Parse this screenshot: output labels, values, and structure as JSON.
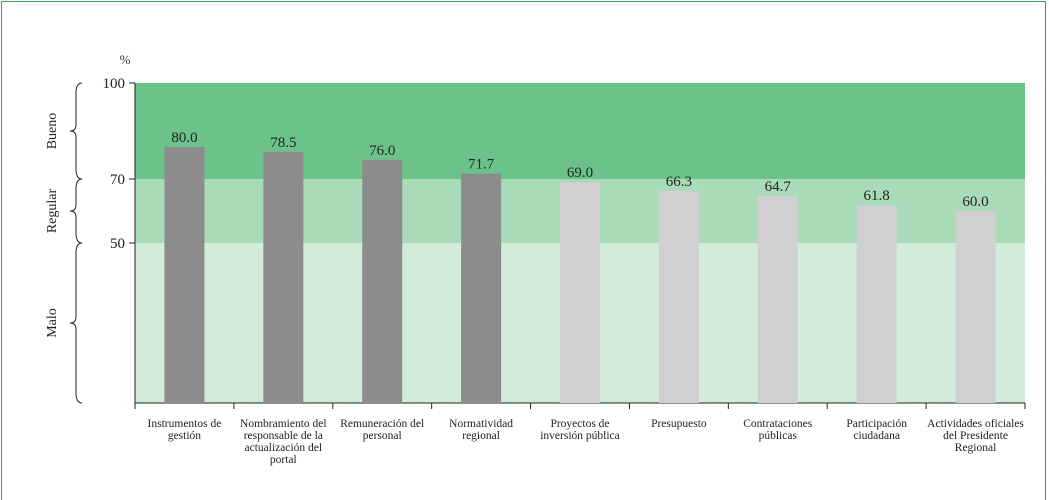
{
  "chart_data": {
    "type": "bar",
    "y_label": "%",
    "categories": [
      "Instrumentos de gestión",
      "Nombramiento del responsable de la actualización del portal",
      "Remuneración del personal",
      "Normatividad regional",
      "Proyectos de inversión pública",
      "Presupuesto",
      "Contrataciones públicas",
      "Participación ciudadana",
      "Actividades oficiales del Presidente Regional"
    ],
    "values": [
      80,
      78.5,
      76,
      71.7,
      69,
      66.3,
      64.7,
      61.8,
      60
    ],
    "value_labels": [
      "80.0",
      "78.5",
      "76.0",
      "71.7",
      "69.0",
      "66.3",
      "64.7",
      "61.8",
      "60.0"
    ],
    "colors": [
      "#8c8c8c",
      "#8c8c8c",
      "#8c8c8c",
      "#8c8c8c",
      "#d0d0d2",
      "#d0d0d2",
      "#d0d0d2",
      "#d0d0d2",
      "#d0d0d2"
    ],
    "bands": [
      {
        "label": "Bueno",
        "from": 70,
        "to": 100,
        "color": "#6cc38a"
      },
      {
        "label": "Regular",
        "from": 50,
        "to": 70,
        "color": "#a9dbb9"
      },
      {
        "label": "Malo",
        "from": 0,
        "to": 50,
        "color": "#d2ecd9"
      }
    ],
    "ylim": [
      0,
      100
    ],
    "yticks": [
      50,
      70,
      100
    ]
  }
}
